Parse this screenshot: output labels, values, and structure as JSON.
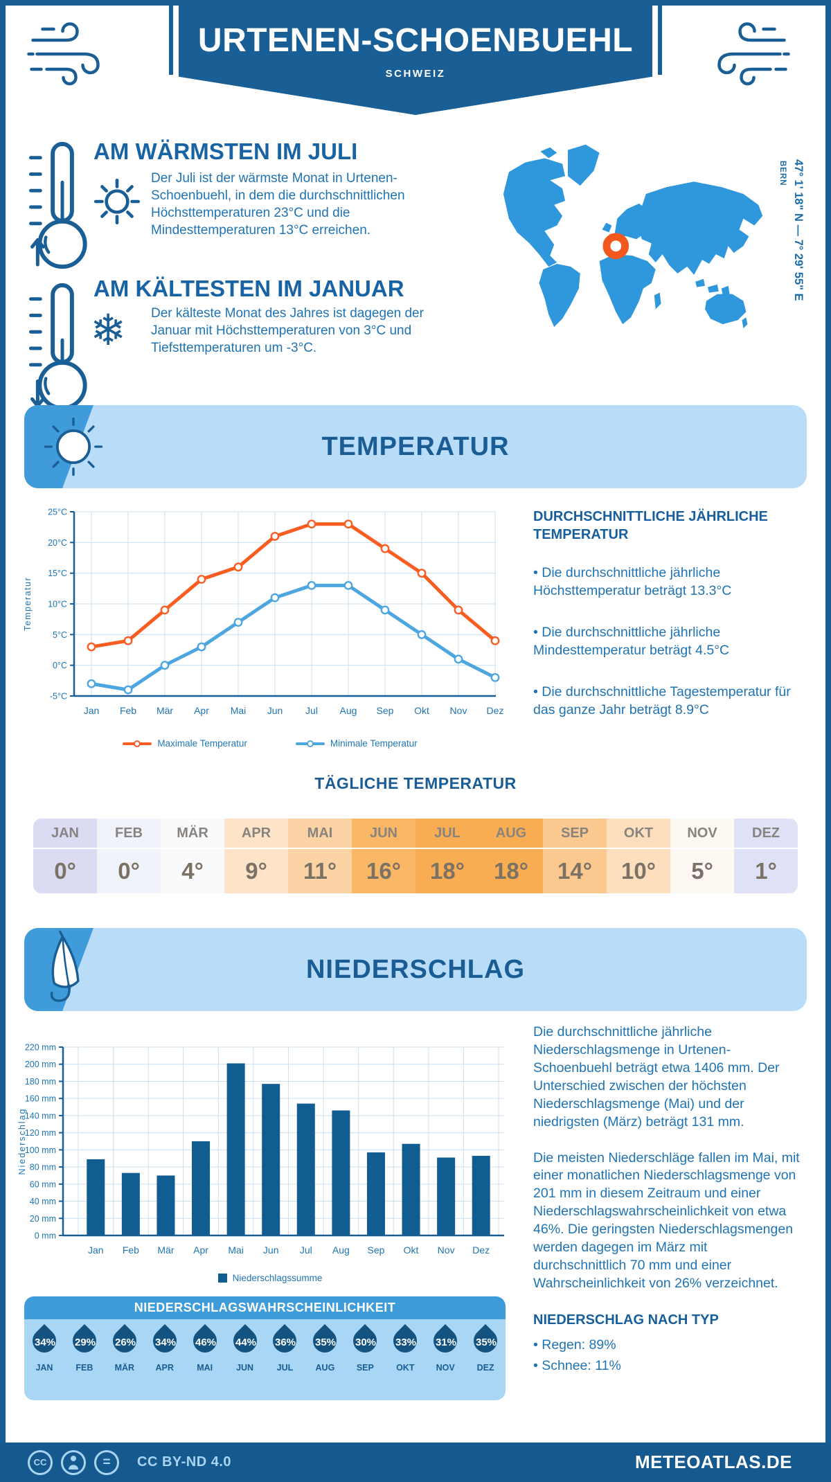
{
  "header": {
    "title": "URTENEN-SCHOENBUEHL",
    "subtitle": "SCHWEIZ"
  },
  "highlights": {
    "warmest": {
      "title": "AM WÄRMSTEN IM JULI",
      "text": "Der Juli ist der wärmste Monat in Urtenen-Schoenbuehl, in dem die durchschnittlichen Höchsttemperaturen 23°C und die Mindesttemperaturen 13°C erreichen."
    },
    "coldest": {
      "title": "AM KÄLTESTEN IM JANUAR",
      "text": "Der kälteste Monat des Jahres ist dagegen der Januar mit Höchsttemperaturen von 3°C und Tiefsttemperaturen um -3°C."
    }
  },
  "map": {
    "coordinates": "47° 1' 18\" N — 7° 29' 55\" E",
    "city": "BERN",
    "land_color": "#2F97DC",
    "marker_color": "#F2571C"
  },
  "temperature_section": {
    "title": "TEMPERATUR",
    "annual": {
      "heading": "DURCHSCHNITTLICHE JÄHRLICHE TEMPERATUR",
      "bullets": [
        "• Die durchschnittliche jährliche Höchsttemperatur beträgt 13.3°C",
        "• Die durchschnittliche jährliche Mindesttemperatur beträgt 4.5°C",
        "• Die durchschnittliche Tagestemperatur für das ganze Jahr beträgt 8.9°C"
      ]
    },
    "daily": {
      "heading": "TÄGLICHE TEMPERATUR",
      "months": [
        {
          "label": "JAN",
          "value": "0°",
          "bg": "#DBDCF3"
        },
        {
          "label": "FEB",
          "value": "0°",
          "bg": "#F1F3FA"
        },
        {
          "label": "MÄR",
          "value": "4°",
          "bg": "#FAFAFD"
        },
        {
          "label": "APR",
          "value": "9°",
          "bg": "#FDE3C7"
        },
        {
          "label": "MAI",
          "value": "11°",
          "bg": "#FCD3A4"
        },
        {
          "label": "JUN",
          "value": "16°",
          "bg": "#FAB765"
        },
        {
          "label": "JUL",
          "value": "18°",
          "bg": "#F9AD53"
        },
        {
          "label": "AUG",
          "value": "18°",
          "bg": "#F9AD53"
        },
        {
          "label": "SEP",
          "value": "14°",
          "bg": "#FBC98F"
        },
        {
          "label": "OKT",
          "value": "10°",
          "bg": "#FDDFBE"
        },
        {
          "label": "NOV",
          "value": "5°",
          "bg": "#FEF8F2"
        },
        {
          "label": "DEZ",
          "value": "1°",
          "bg": "#DFE1F6"
        }
      ]
    }
  },
  "precipitation_section": {
    "title": "NIEDERSCHLAG",
    "text1": "Die durchschnittliche jährliche Niederschlagsmenge in Urtenen-Schoenbuehl beträgt etwa 1406 mm. Der Unterschied zwischen der höchsten Niederschlagsmenge (Mai) und der niedrigsten (März) beträgt 131 mm.",
    "text2": "Die meisten Niederschläge fallen im Mai, mit einer monatlichen Niederschlagsmenge von 201 mm in diesem Zeitraum und einer Niederschlagswahrscheinlichkeit von etwa 46%. Die geringsten Niederschlagsmengen werden dagegen im März mit durchschnittlich 70 mm und einer Wahrscheinlichkeit von 26% verzeichnet.",
    "by_type": {
      "heading": "NIEDERSCHLAG NACH TYP",
      "bullets": [
        "• Regen: 89%",
        "• Schnee: 11%"
      ]
    },
    "probability": {
      "heading": "NIEDERSCHLAGSWAHRSCHEINLICHKEIT",
      "months": [
        {
          "label": "JAN",
          "value": "34%"
        },
        {
          "label": "FEB",
          "value": "29%"
        },
        {
          "label": "MÄR",
          "value": "26%"
        },
        {
          "label": "APR",
          "value": "34%"
        },
        {
          "label": "MAI",
          "value": "46%"
        },
        {
          "label": "JUN",
          "value": "44%"
        },
        {
          "label": "JUL",
          "value": "36%"
        },
        {
          "label": "AUG",
          "value": "35%"
        },
        {
          "label": "SEP",
          "value": "30%"
        },
        {
          "label": "OKT",
          "value": "33%"
        },
        {
          "label": "NOV",
          "value": "31%"
        },
        {
          "label": "DEZ",
          "value": "35%"
        }
      ]
    }
  },
  "chart_data": [
    {
      "type": "line",
      "categories": [
        "Jan",
        "Feb",
        "Mär",
        "Apr",
        "Mai",
        "Jun",
        "Jul",
        "Aug",
        "Sep",
        "Okt",
        "Nov",
        "Dez"
      ],
      "series": [
        {
          "name": "Maximale Temperatur",
          "color": "#F95D22",
          "values": [
            3,
            4,
            9,
            14,
            16,
            21,
            23,
            23,
            19,
            15,
            9,
            4
          ]
        },
        {
          "name": "Minimale Temperatur",
          "color": "#4DA6E0",
          "values": [
            -3,
            -4,
            0,
            3,
            7,
            11,
            13,
            13,
            9,
            5,
            1,
            -2
          ]
        }
      ],
      "title": "",
      "xlabel": "",
      "ylabel": "Temperatur",
      "ylim": [
        -5,
        25
      ],
      "ytick_step": 5,
      "ytick_suffix": "°C",
      "grid": true,
      "legend_position": "bottom"
    },
    {
      "type": "bar",
      "categories": [
        "Jan",
        "Feb",
        "Mär",
        "Apr",
        "Mai",
        "Jun",
        "Jul",
        "Aug",
        "Sep",
        "Okt",
        "Nov",
        "Dez"
      ],
      "values": [
        89,
        73,
        70,
        110,
        201,
        177,
        154,
        146,
        97,
        107,
        91,
        93
      ],
      "title": "",
      "xlabel": "",
      "ylabel": "Niederschlag",
      "ylim": [
        0,
        220
      ],
      "ytick_step": 20,
      "ytick_suffix": " mm",
      "color": "#115C90",
      "grid": true,
      "legend": "Niederschlagssumme",
      "legend_position": "bottom"
    }
  ],
  "footer": {
    "license": "CC BY-ND 4.0",
    "site": "METEOATLAS.DE",
    "icon_glyphs": {
      "cc": "CC",
      "equals": "="
    }
  }
}
